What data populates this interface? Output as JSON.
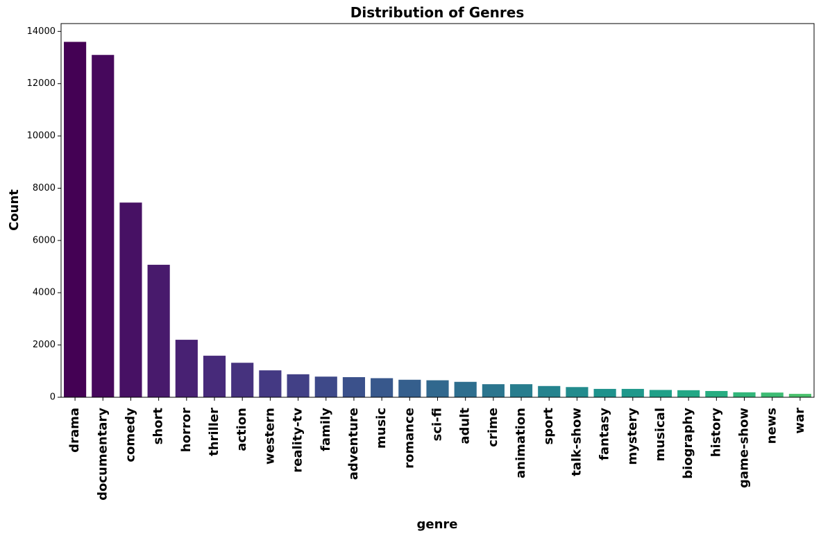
{
  "chart_data": {
    "type": "bar",
    "title": "Distribution of Genres",
    "xlabel": "genre",
    "ylabel": "Count",
    "ylim": [
      0,
      14300
    ],
    "yticks": [
      0,
      2000,
      4000,
      6000,
      8000,
      10000,
      12000,
      14000
    ],
    "grid": false,
    "legend": "none",
    "palette": "viridis",
    "categories": [
      "drama",
      "documentary",
      "comedy",
      "short",
      "horror",
      "thriller",
      "action",
      "western",
      "reality-tv",
      "family",
      "adventure",
      "music",
      "romance",
      "sci-fi",
      "adult",
      "crime",
      "animation",
      "sport",
      "talk-show",
      "fantasy",
      "mystery",
      "musical",
      "biography",
      "history",
      "game-show",
      "news",
      "war"
    ],
    "values": [
      13600,
      13100,
      7450,
      5070,
      2200,
      1590,
      1320,
      1030,
      880,
      790,
      770,
      730,
      670,
      650,
      590,
      500,
      500,
      430,
      390,
      320,
      320,
      280,
      270,
      240,
      190,
      180,
      130
    ],
    "colors": [
      "#440154",
      "#46085c",
      "#471164",
      "#481a6c",
      "#482173",
      "#472a7a",
      "#46327e",
      "#443983",
      "#424086",
      "#3e4989",
      "#3b518b",
      "#38588c",
      "#355f8d",
      "#31688e",
      "#2e6e8e",
      "#2b758e",
      "#287d8e",
      "#25838e",
      "#228b8d",
      "#1f928c",
      "#1f988b",
      "#1fa088",
      "#22a785",
      "#27ad81",
      "#32b67a",
      "#3dbc74",
      "#4ac16d"
    ]
  }
}
